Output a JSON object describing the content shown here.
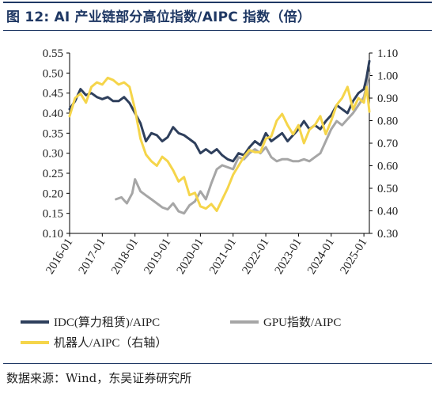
{
  "figure": {
    "title": "图 12:  AI 产业链部分高位指数/AIPC 指数（倍）",
    "source": "数据来源：Wind，东吴证券研究所"
  },
  "colors": {
    "idc": "#2e3f5c",
    "gpu": "#a6a6a6",
    "robot": "#f5d54a",
    "frame": "#1f3864"
  },
  "chart_data": {
    "type": "line",
    "x_start": "2016-01",
    "x_end": "2025-03",
    "x_ticks": [
      "2016-01",
      "2017-01",
      "2018-01",
      "2019-01",
      "2020-01",
      "2021-01",
      "2022-01",
      "2023-01",
      "2024-01",
      "2025-01"
    ],
    "y_left": {
      "lim": [
        0.1,
        0.55
      ],
      "ticks": [
        "0.10",
        "0.15",
        "0.20",
        "0.25",
        "0.30",
        "0.35",
        "0.40",
        "0.45",
        "0.50",
        "0.55"
      ]
    },
    "y_right": {
      "lim": [
        0.3,
        1.1
      ],
      "ticks": [
        "0.30",
        "0.40",
        "0.50",
        "0.60",
        "0.70",
        "0.80",
        "0.90",
        "1.00",
        "1.10"
      ]
    },
    "legend_position": "bottom",
    "series": [
      {
        "name": "IDC(算力租赁)/AIPC",
        "axis": "left",
        "points": [
          [
            "2016-01",
            0.41
          ],
          [
            "2016-03",
            0.43
          ],
          [
            "2016-05",
            0.46
          ],
          [
            "2016-07",
            0.445
          ],
          [
            "2016-09",
            0.45
          ],
          [
            "2016-11",
            0.44
          ],
          [
            "2017-01",
            0.435
          ],
          [
            "2017-03",
            0.44
          ],
          [
            "2017-05",
            0.43
          ],
          [
            "2017-07",
            0.43
          ],
          [
            "2017-09",
            0.44
          ],
          [
            "2017-11",
            0.425
          ],
          [
            "2018-01",
            0.4
          ],
          [
            "2018-03",
            0.375
          ],
          [
            "2018-05",
            0.33
          ],
          [
            "2018-07",
            0.35
          ],
          [
            "2018-09",
            0.345
          ],
          [
            "2018-11",
            0.33
          ],
          [
            "2019-01",
            0.34
          ],
          [
            "2019-03",
            0.365
          ],
          [
            "2019-05",
            0.35
          ],
          [
            "2019-07",
            0.345
          ],
          [
            "2019-09",
            0.335
          ],
          [
            "2019-11",
            0.325
          ],
          [
            "2020-01",
            0.3
          ],
          [
            "2020-03",
            0.31
          ],
          [
            "2020-05",
            0.3
          ],
          [
            "2020-07",
            0.31
          ],
          [
            "2020-09",
            0.295
          ],
          [
            "2020-11",
            0.285
          ],
          [
            "2021-01",
            0.28
          ],
          [
            "2021-03",
            0.3
          ],
          [
            "2021-05",
            0.295
          ],
          [
            "2021-07",
            0.315
          ],
          [
            "2021-09",
            0.33
          ],
          [
            "2021-11",
            0.32
          ],
          [
            "2022-01",
            0.35
          ],
          [
            "2022-03",
            0.33
          ],
          [
            "2022-05",
            0.34
          ],
          [
            "2022-07",
            0.35
          ],
          [
            "2022-09",
            0.33
          ],
          [
            "2022-11",
            0.345
          ],
          [
            "2023-01",
            0.36
          ],
          [
            "2023-03",
            0.38
          ],
          [
            "2023-05",
            0.36
          ],
          [
            "2023-07",
            0.37
          ],
          [
            "2023-09",
            0.36
          ],
          [
            "2023-11",
            0.38
          ],
          [
            "2024-01",
            0.395
          ],
          [
            "2024-03",
            0.42
          ],
          [
            "2024-05",
            0.41
          ],
          [
            "2024-07",
            0.4
          ],
          [
            "2024-09",
            0.43
          ],
          [
            "2024-11",
            0.45
          ],
          [
            "2025-01",
            0.46
          ],
          [
            "2025-02",
            0.49
          ],
          [
            "2025-03",
            0.53
          ]
        ]
      },
      {
        "name": "GPU指数/AIPC",
        "axis": "left",
        "points": [
          [
            "2017-06",
            0.185
          ],
          [
            "2017-08",
            0.19
          ],
          [
            "2017-10",
            0.175
          ],
          [
            "2017-12",
            0.2
          ],
          [
            "2018-01",
            0.235
          ],
          [
            "2018-03",
            0.205
          ],
          [
            "2018-05",
            0.195
          ],
          [
            "2018-07",
            0.185
          ],
          [
            "2018-09",
            0.175
          ],
          [
            "2018-11",
            0.165
          ],
          [
            "2019-01",
            0.16
          ],
          [
            "2019-03",
            0.175
          ],
          [
            "2019-05",
            0.155
          ],
          [
            "2019-07",
            0.15
          ],
          [
            "2019-09",
            0.17
          ],
          [
            "2019-11",
            0.18
          ],
          [
            "2020-01",
            0.205
          ],
          [
            "2020-03",
            0.185
          ],
          [
            "2020-05",
            0.225
          ],
          [
            "2020-07",
            0.26
          ],
          [
            "2020-09",
            0.27
          ],
          [
            "2020-11",
            0.265
          ],
          [
            "2021-01",
            0.26
          ],
          [
            "2021-03",
            0.29
          ],
          [
            "2021-05",
            0.285
          ],
          [
            "2021-07",
            0.3
          ],
          [
            "2021-09",
            0.31
          ],
          [
            "2021-11",
            0.3
          ],
          [
            "2022-01",
            0.315
          ],
          [
            "2022-03",
            0.29
          ],
          [
            "2022-05",
            0.28
          ],
          [
            "2022-07",
            0.285
          ],
          [
            "2022-09",
            0.285
          ],
          [
            "2022-11",
            0.28
          ],
          [
            "2023-01",
            0.28
          ],
          [
            "2023-03",
            0.285
          ],
          [
            "2023-05",
            0.28
          ],
          [
            "2023-07",
            0.29
          ],
          [
            "2023-09",
            0.3
          ],
          [
            "2023-11",
            0.33
          ],
          [
            "2024-01",
            0.36
          ],
          [
            "2024-03",
            0.38
          ],
          [
            "2024-05",
            0.37
          ],
          [
            "2024-07",
            0.385
          ],
          [
            "2024-09",
            0.4
          ],
          [
            "2024-11",
            0.42
          ],
          [
            "2025-01",
            0.44
          ],
          [
            "2025-02",
            0.47
          ],
          [
            "2025-03",
            0.5
          ]
        ]
      },
      {
        "name": "机器人/AIPC（右轴）",
        "axis": "right",
        "points": [
          [
            "2016-01",
            0.82
          ],
          [
            "2016-03",
            0.9
          ],
          [
            "2016-05",
            0.92
          ],
          [
            "2016-07",
            0.88
          ],
          [
            "2016-09",
            0.95
          ],
          [
            "2016-11",
            0.97
          ],
          [
            "2017-01",
            0.96
          ],
          [
            "2017-03",
            0.99
          ],
          [
            "2017-05",
            0.98
          ],
          [
            "2017-07",
            0.96
          ],
          [
            "2017-09",
            0.97
          ],
          [
            "2017-11",
            0.95
          ],
          [
            "2018-01",
            0.85
          ],
          [
            "2018-03",
            0.72
          ],
          [
            "2018-05",
            0.65
          ],
          [
            "2018-07",
            0.62
          ],
          [
            "2018-09",
            0.6
          ],
          [
            "2018-11",
            0.64
          ],
          [
            "2019-01",
            0.62
          ],
          [
            "2019-03",
            0.58
          ],
          [
            "2019-05",
            0.53
          ],
          [
            "2019-07",
            0.55
          ],
          [
            "2019-09",
            0.47
          ],
          [
            "2019-11",
            0.48
          ],
          [
            "2020-01",
            0.42
          ],
          [
            "2020-03",
            0.41
          ],
          [
            "2020-05",
            0.43
          ],
          [
            "2020-07",
            0.4
          ],
          [
            "2020-09",
            0.45
          ],
          [
            "2020-11",
            0.5
          ],
          [
            "2021-01",
            0.56
          ],
          [
            "2021-03",
            0.6
          ],
          [
            "2021-05",
            0.64
          ],
          [
            "2021-07",
            0.67
          ],
          [
            "2021-09",
            0.66
          ],
          [
            "2021-11",
            0.66
          ],
          [
            "2022-01",
            0.72
          ],
          [
            "2022-03",
            0.73
          ],
          [
            "2022-05",
            0.8
          ],
          [
            "2022-07",
            0.83
          ],
          [
            "2022-09",
            0.78
          ],
          [
            "2022-11",
            0.74
          ],
          [
            "2023-01",
            0.78
          ],
          [
            "2023-03",
            0.7
          ],
          [
            "2023-05",
            0.76
          ],
          [
            "2023-07",
            0.78
          ],
          [
            "2023-09",
            0.82
          ],
          [
            "2023-11",
            0.74
          ],
          [
            "2024-01",
            0.8
          ],
          [
            "2024-03",
            0.87
          ],
          [
            "2024-05",
            0.9
          ],
          [
            "2024-07",
            0.95
          ],
          [
            "2024-09",
            0.85
          ],
          [
            "2024-11",
            0.9
          ],
          [
            "2025-01",
            0.88
          ],
          [
            "2025-02",
            0.95
          ],
          [
            "2025-03",
            0.84
          ]
        ]
      }
    ]
  }
}
